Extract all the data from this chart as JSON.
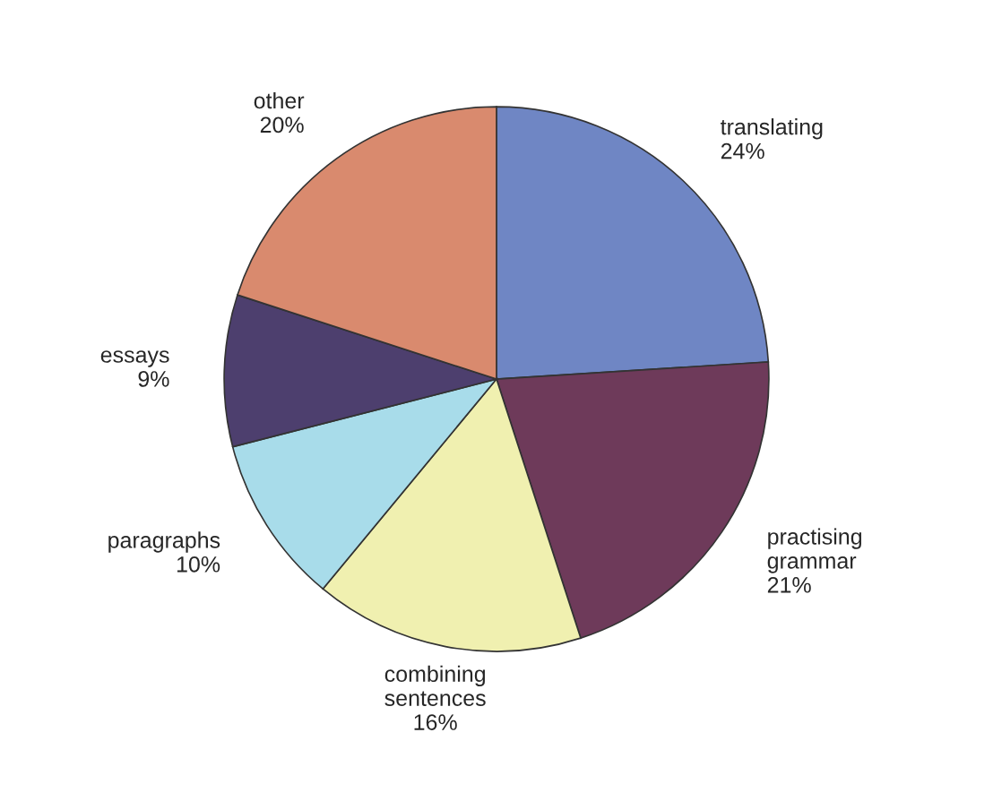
{
  "chart_data": {
    "type": "pie",
    "categories": [
      "translating",
      "practising\ngrammar",
      "combining\nsentences",
      "paragraphs",
      "essays",
      "other"
    ],
    "values": [
      24,
      21,
      16,
      10,
      9,
      20
    ],
    "value_labels": [
      "24%",
      "21%",
      "16%",
      "10%",
      "9%",
      "20%"
    ],
    "colors": [
      "#6f86c4",
      "#6e3a5a",
      "#f0f0b0",
      "#a8dcea",
      "#4d3f6e",
      "#d98a6e"
    ]
  }
}
